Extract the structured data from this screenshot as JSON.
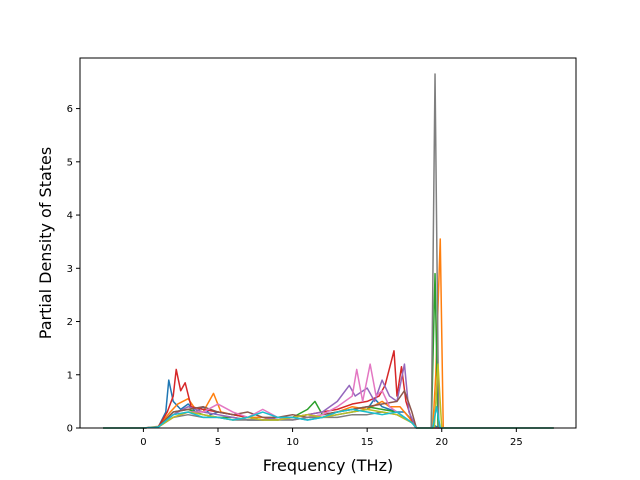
{
  "chart_data": {
    "type": "line",
    "title": "",
    "xlabel": "Frequency (THz)",
    "ylabel": "Partial Density of States",
    "xlim": [
      -4.25,
      29.0
    ],
    "ylim": [
      0,
      6.95
    ],
    "xticks": [
      0,
      5,
      10,
      15,
      20,
      25
    ],
    "yticks": [
      0,
      1,
      2,
      3,
      4,
      5,
      6
    ],
    "grid": false,
    "legend": "none",
    "series": [
      {
        "color": "#1f77b4",
        "points": [
          [
            -2.7,
            0
          ],
          [
            0,
            0
          ],
          [
            1,
            0.02
          ],
          [
            1.5,
            0.3
          ],
          [
            1.7,
            0.9
          ],
          [
            2,
            0.5
          ],
          [
            2.5,
            0.35
          ],
          [
            3,
            0.45
          ],
          [
            3.5,
            0.3
          ],
          [
            4,
            0.4
          ],
          [
            4.5,
            0.25
          ],
          [
            5,
            0.3
          ],
          [
            6,
            0.25
          ],
          [
            7,
            0.2
          ],
          [
            8,
            0.15
          ],
          [
            9,
            0.2
          ],
          [
            10,
            0.2
          ],
          [
            11,
            0.15
          ],
          [
            12,
            0.2
          ],
          [
            13,
            0.25
          ],
          [
            14,
            0.3
          ],
          [
            15,
            0.35
          ],
          [
            15.5,
            0.55
          ],
          [
            16,
            0.4
          ],
          [
            16.5,
            0.35
          ],
          [
            17,
            0.3
          ],
          [
            17.5,
            0.3
          ],
          [
            18,
            0.15
          ],
          [
            18.3,
            0
          ],
          [
            19.2,
            0
          ],
          [
            19.5,
            0.05
          ],
          [
            19.8,
            0
          ],
          [
            27.5,
            0
          ]
        ]
      },
      {
        "color": "#ff7f0e",
        "points": [
          [
            -2.7,
            0
          ],
          [
            0,
            0
          ],
          [
            1,
            0.03
          ],
          [
            1.8,
            0.3
          ],
          [
            2.3,
            0.45
          ],
          [
            3,
            0.55
          ],
          [
            3.5,
            0.35
          ],
          [
            4,
            0.3
          ],
          [
            4.7,
            0.65
          ],
          [
            5.2,
            0.3
          ],
          [
            6,
            0.25
          ],
          [
            7,
            0.2
          ],
          [
            8,
            0.2
          ],
          [
            9,
            0.15
          ],
          [
            10,
            0.2
          ],
          [
            11,
            0.25
          ],
          [
            12,
            0.2
          ],
          [
            13,
            0.3
          ],
          [
            14,
            0.4
          ],
          [
            15,
            0.35
          ],
          [
            16,
            0.5
          ],
          [
            16.5,
            0.4
          ],
          [
            17.2,
            0.4
          ],
          [
            17.8,
            0.2
          ],
          [
            18.3,
            0
          ],
          [
            19.4,
            0
          ],
          [
            19.6,
            1.0
          ],
          [
            19.9,
            3.55
          ],
          [
            20.1,
            0
          ],
          [
            27.5,
            0
          ]
        ]
      },
      {
        "color": "#2ca02c",
        "points": [
          [
            -2.7,
            0
          ],
          [
            0,
            0
          ],
          [
            1,
            0.02
          ],
          [
            2,
            0.3
          ],
          [
            3,
            0.35
          ],
          [
            4,
            0.25
          ],
          [
            5,
            0.2
          ],
          [
            6,
            0.2
          ],
          [
            7,
            0.15
          ],
          [
            8,
            0.15
          ],
          [
            9,
            0.15
          ],
          [
            10,
            0.2
          ],
          [
            11,
            0.35
          ],
          [
            11.5,
            0.5
          ],
          [
            12,
            0.25
          ],
          [
            13,
            0.3
          ],
          [
            14,
            0.35
          ],
          [
            15,
            0.4
          ],
          [
            16,
            0.35
          ],
          [
            17,
            0.3
          ],
          [
            18,
            0.1
          ],
          [
            18.3,
            0
          ],
          [
            19.3,
            0
          ],
          [
            19.55,
            2.9
          ],
          [
            19.75,
            0
          ],
          [
            27.5,
            0
          ]
        ]
      },
      {
        "color": "#d62728",
        "points": [
          [
            -2.7,
            0
          ],
          [
            0,
            0
          ],
          [
            1,
            0.02
          ],
          [
            1.6,
            0.3
          ],
          [
            2,
            0.6
          ],
          [
            2.2,
            1.1
          ],
          [
            2.5,
            0.7
          ],
          [
            2.8,
            0.85
          ],
          [
            3.2,
            0.4
          ],
          [
            4,
            0.35
          ],
          [
            5,
            0.3
          ],
          [
            6,
            0.25
          ],
          [
            7,
            0.2
          ],
          [
            8,
            0.15
          ],
          [
            9,
            0.2
          ],
          [
            10,
            0.2
          ],
          [
            11,
            0.25
          ],
          [
            12,
            0.3
          ],
          [
            13,
            0.35
          ],
          [
            14,
            0.45
          ],
          [
            15,
            0.5
          ],
          [
            15.8,
            0.6
          ],
          [
            16.2,
            0.8
          ],
          [
            16.8,
            1.45
          ],
          [
            17,
            0.6
          ],
          [
            17.3,
            1.15
          ],
          [
            17.6,
            0.5
          ],
          [
            18,
            0.15
          ],
          [
            18.3,
            0
          ],
          [
            27.5,
            0
          ]
        ]
      },
      {
        "color": "#9467bd",
        "points": [
          [
            -2.7,
            0
          ],
          [
            0,
            0
          ],
          [
            1,
            0.02
          ],
          [
            2,
            0.25
          ],
          [
            3,
            0.4
          ],
          [
            4,
            0.3
          ],
          [
            5,
            0.25
          ],
          [
            6,
            0.2
          ],
          [
            7,
            0.15
          ],
          [
            8,
            0.15
          ],
          [
            9,
            0.2
          ],
          [
            10,
            0.2
          ],
          [
            11,
            0.25
          ],
          [
            12,
            0.3
          ],
          [
            13,
            0.5
          ],
          [
            13.8,
            0.8
          ],
          [
            14.2,
            0.6
          ],
          [
            15,
            0.75
          ],
          [
            15.5,
            0.5
          ],
          [
            16,
            0.9
          ],
          [
            16.5,
            0.6
          ],
          [
            17,
            0.5
          ],
          [
            17.5,
            1.2
          ],
          [
            17.8,
            0.3
          ],
          [
            18.3,
            0
          ],
          [
            27.5,
            0
          ]
        ]
      },
      {
        "color": "#8c564b",
        "points": [
          [
            -2.7,
            0
          ],
          [
            0,
            0
          ],
          [
            1,
            0.02
          ],
          [
            2,
            0.3
          ],
          [
            3,
            0.35
          ],
          [
            4,
            0.4
          ],
          [
            5,
            0.3
          ],
          [
            6,
            0.25
          ],
          [
            7,
            0.3
          ],
          [
            8,
            0.2
          ],
          [
            9,
            0.2
          ],
          [
            10,
            0.25
          ],
          [
            11,
            0.2
          ],
          [
            12,
            0.25
          ],
          [
            13,
            0.3
          ],
          [
            14,
            0.35
          ],
          [
            15,
            0.4
          ],
          [
            16,
            0.45
          ],
          [
            17,
            0.5
          ],
          [
            17.5,
            0.7
          ],
          [
            18,
            0.3
          ],
          [
            18.3,
            0
          ],
          [
            27.5,
            0
          ]
        ]
      },
      {
        "color": "#e377c2",
        "points": [
          [
            -2.7,
            0
          ],
          [
            0,
            0
          ],
          [
            1,
            0.02
          ],
          [
            2,
            0.2
          ],
          [
            3,
            0.3
          ],
          [
            4,
            0.3
          ],
          [
            5,
            0.45
          ],
          [
            6,
            0.3
          ],
          [
            7,
            0.2
          ],
          [
            8,
            0.35
          ],
          [
            9,
            0.2
          ],
          [
            10,
            0.15
          ],
          [
            11,
            0.2
          ],
          [
            12,
            0.25
          ],
          [
            13,
            0.4
          ],
          [
            14,
            0.6
          ],
          [
            14.3,
            1.1
          ],
          [
            14.7,
            0.5
          ],
          [
            15.2,
            1.2
          ],
          [
            15.6,
            0.6
          ],
          [
            16,
            0.7
          ],
          [
            16.5,
            0.4
          ],
          [
            17,
            0.3
          ],
          [
            18,
            0.1
          ],
          [
            18.3,
            0
          ],
          [
            27.5,
            0
          ]
        ]
      },
      {
        "color": "#7f7f7f",
        "points": [
          [
            -2.7,
            0
          ],
          [
            0,
            0
          ],
          [
            1,
            0.02
          ],
          [
            2,
            0.2
          ],
          [
            3,
            0.25
          ],
          [
            4,
            0.2
          ],
          [
            5,
            0.2
          ],
          [
            6,
            0.15
          ],
          [
            7,
            0.15
          ],
          [
            8,
            0.15
          ],
          [
            9,
            0.15
          ],
          [
            10,
            0.15
          ],
          [
            11,
            0.2
          ],
          [
            12,
            0.2
          ],
          [
            13,
            0.2
          ],
          [
            14,
            0.25
          ],
          [
            15,
            0.25
          ],
          [
            16,
            0.3
          ],
          [
            17,
            0.25
          ],
          [
            18,
            0.1
          ],
          [
            18.3,
            0
          ],
          [
            19.3,
            0
          ],
          [
            19.55,
            6.65
          ],
          [
            19.8,
            0
          ],
          [
            27.5,
            0
          ]
        ]
      },
      {
        "color": "#bcbd22",
        "points": [
          [
            -2.7,
            0
          ],
          [
            0,
            0
          ],
          [
            1,
            0.02
          ],
          [
            2,
            0.2
          ],
          [
            3,
            0.3
          ],
          [
            4,
            0.25
          ],
          [
            5,
            0.2
          ],
          [
            6,
            0.15
          ],
          [
            7,
            0.2
          ],
          [
            8,
            0.15
          ],
          [
            9,
            0.15
          ],
          [
            10,
            0.2
          ],
          [
            11,
            0.25
          ],
          [
            12,
            0.2
          ],
          [
            13,
            0.25
          ],
          [
            14,
            0.3
          ],
          [
            15,
            0.35
          ],
          [
            16,
            0.3
          ],
          [
            17,
            0.25
          ],
          [
            18,
            0.1
          ],
          [
            18.3,
            0
          ],
          [
            19.5,
            0
          ],
          [
            19.75,
            1.2
          ],
          [
            20,
            0
          ],
          [
            27.5,
            0
          ]
        ]
      },
      {
        "color": "#17becf",
        "points": [
          [
            -2.7,
            0
          ],
          [
            0,
            0
          ],
          [
            1,
            0.02
          ],
          [
            2,
            0.25
          ],
          [
            3,
            0.3
          ],
          [
            4,
            0.2
          ],
          [
            5,
            0.2
          ],
          [
            6,
            0.15
          ],
          [
            7,
            0.2
          ],
          [
            8,
            0.3
          ],
          [
            9,
            0.2
          ],
          [
            10,
            0.2
          ],
          [
            11,
            0.15
          ],
          [
            12,
            0.2
          ],
          [
            13,
            0.3
          ],
          [
            14,
            0.35
          ],
          [
            15,
            0.3
          ],
          [
            16,
            0.25
          ],
          [
            17,
            0.3
          ],
          [
            18,
            0.1
          ],
          [
            18.3,
            0
          ],
          [
            19.4,
            0
          ],
          [
            19.65,
            0.4
          ],
          [
            19.9,
            0
          ],
          [
            27.5,
            0
          ]
        ]
      }
    ]
  }
}
